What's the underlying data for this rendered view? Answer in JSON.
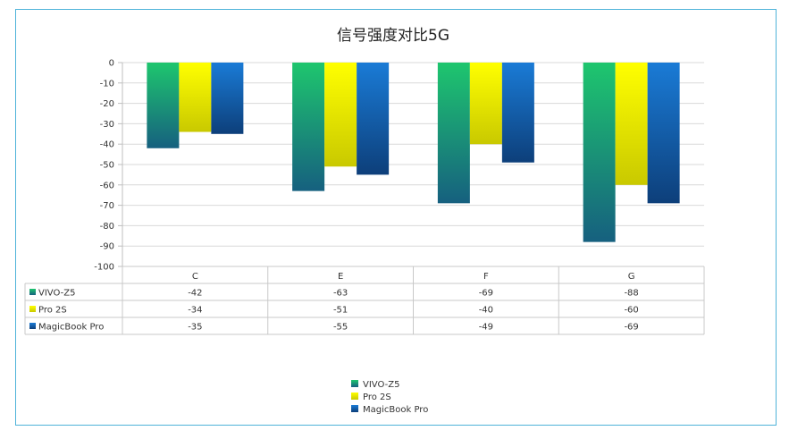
{
  "chart_data": {
    "type": "bar",
    "title": "信号强度对比5G",
    "categories": [
      "C",
      "E",
      "F",
      "G"
    ],
    "series": [
      {
        "name": "VIVO-Z5",
        "values": [
          -42,
          -63,
          -69,
          -88
        ],
        "color_top": "#1ec66e",
        "color_bottom": "#16607f"
      },
      {
        "name": "Pro 2S",
        "values": [
          -34,
          -51,
          -40,
          -60
        ],
        "color_top": "#ffff00",
        "color_bottom": "#c9c900"
      },
      {
        "name": "MagicBook Pro",
        "values": [
          -35,
          -55,
          -49,
          -69
        ],
        "color_top": "#1a7bd6",
        "color_bottom": "#0d3f7a"
      }
    ],
    "yticks": [
      "0",
      "-10",
      "-20",
      "-30",
      "-40",
      "-50",
      "-60",
      "-70",
      "-80",
      "-90",
      "-100"
    ],
    "ylim": [
      -100,
      0
    ],
    "grid": true,
    "data_table": true,
    "legend_position": "bottom"
  }
}
